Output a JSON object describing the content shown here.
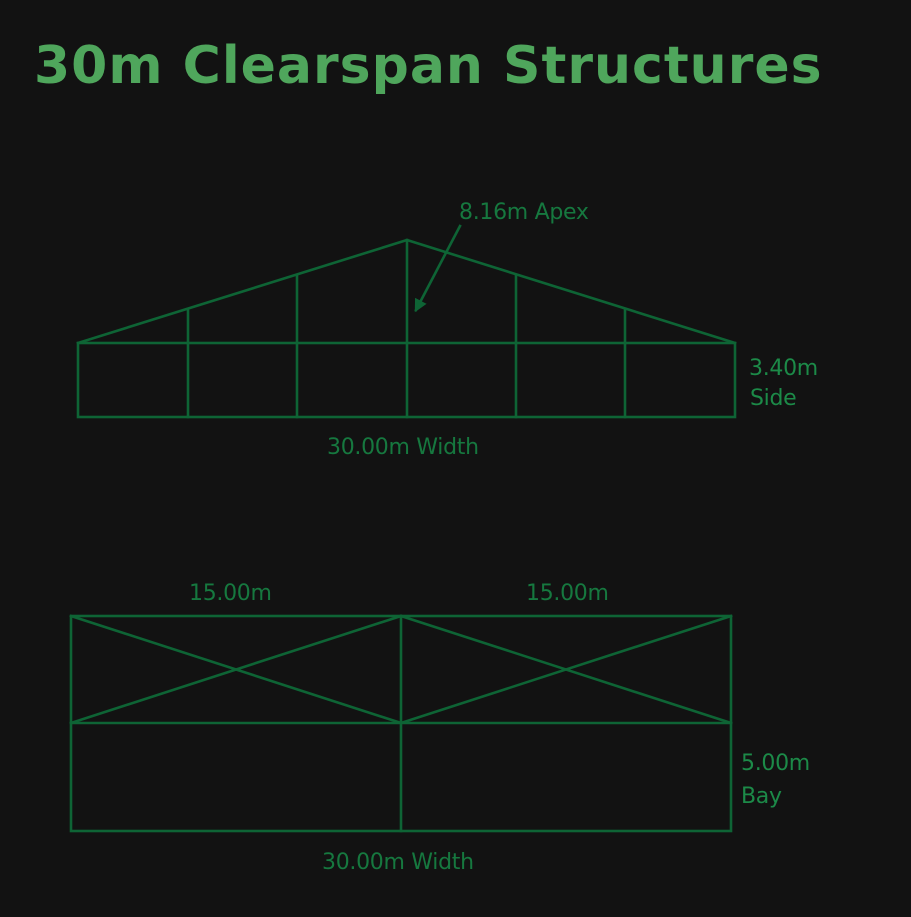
{
  "title": "30m Clearspan Structures",
  "colors": {
    "background": "#121212",
    "title": "#4fa65c",
    "frame": "#0e6435",
    "label": "#16783f",
    "label_bright": "#1c8a48"
  },
  "elevation": {
    "apex_label": "8.16m Apex",
    "side_label_line1": "3.40m",
    "side_label_line2": "Side",
    "width_label": "30.00m Width"
  },
  "plan": {
    "bay_left_label": "15.00m",
    "bay_right_label": "15.00m",
    "bay_label_line1": "5.00m",
    "bay_label_line2": "Bay",
    "width_label": "30.00m Width"
  }
}
